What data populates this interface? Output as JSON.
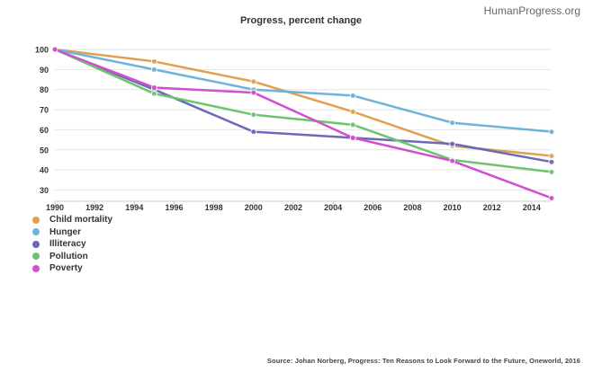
{
  "watermark": "HumanProgress.org",
  "source": "Source: Johan Norberg, Progress: Ten Reasons to Look Forward to the Future, Oneworld, 2016",
  "chart_data": {
    "type": "line",
    "title": "Progress, percent change",
    "xlabel": "",
    "ylabel": "",
    "xlim": [
      1990,
      2015
    ],
    "ylim": [
      25,
      100
    ],
    "x_ticks": [
      1990,
      1992,
      1994,
      1996,
      1998,
      2000,
      2002,
      2004,
      2006,
      2008,
      2010,
      2012,
      2014
    ],
    "y_ticks": [
      30,
      40,
      50,
      60,
      70,
      80,
      90,
      100
    ],
    "grid": "horizontal",
    "legend_position": "bottom-left",
    "series": [
      {
        "name": "Child mortality",
        "color": "#e0a050",
        "x": [
          1990,
          1995,
          2000,
          2005,
          2010,
          2015
        ],
        "values": [
          100,
          94,
          84,
          69,
          52,
          47
        ]
      },
      {
        "name": "Hunger",
        "color": "#6fb3d9",
        "x": [
          1990,
          1995,
          2000,
          2005,
          2010,
          2015
        ],
        "values": [
          100,
          90,
          80,
          77,
          63.5,
          59
        ]
      },
      {
        "name": "Illiteracy",
        "color": "#6a6ab8",
        "x": [
          1990,
          1995,
          2000,
          2005,
          2010,
          2015
        ],
        "values": [
          100,
          80,
          59,
          56,
          53,
          44
        ]
      },
      {
        "name": "Pollution",
        "color": "#6cc56c",
        "x": [
          1990,
          1995,
          2000,
          2005,
          2010,
          2015
        ],
        "values": [
          100,
          78,
          67.5,
          62.5,
          45,
          39
        ]
      },
      {
        "name": "Poverty",
        "color": "#d050d0",
        "x": [
          1990,
          1995,
          2000,
          2005,
          2010,
          2015
        ],
        "values": [
          100,
          81,
          78.5,
          56,
          44.5,
          26
        ]
      }
    ]
  }
}
